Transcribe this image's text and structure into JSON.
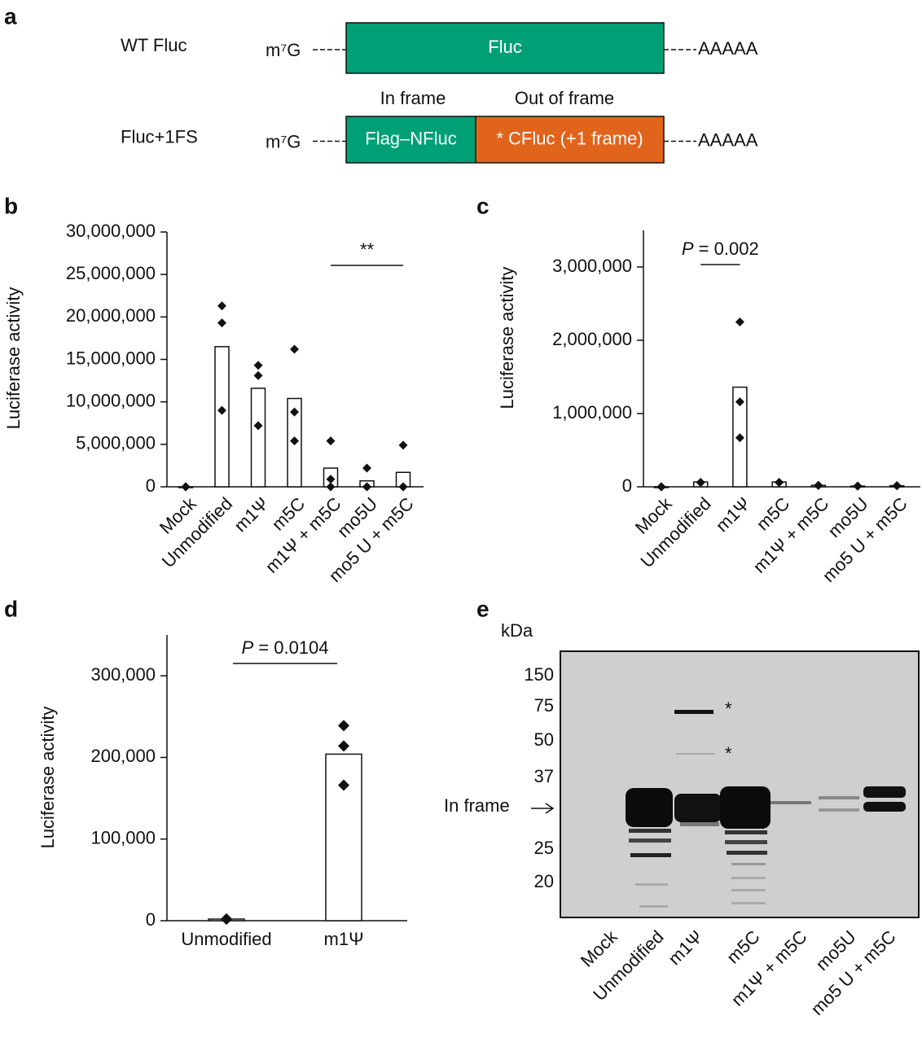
{
  "diagram": {
    "label": "a",
    "frame_labels": [
      "In frame",
      "Out of frame"
    ],
    "constructs": [
      {
        "name": "WT Fluc",
        "cap": "m⁷G",
        "segments": [
          {
            "text": "Fluc",
            "color": "#00a077"
          }
        ],
        "tail": "AAAAA"
      },
      {
        "name": "Fluc+1FS",
        "cap": "m⁷G",
        "segments": [
          {
            "text": "Flag–NFluc",
            "color": "#00a077"
          },
          {
            "text": "* CFluc (+1 frame)",
            "color": "#e0641c"
          }
        ],
        "tail": "AAAAA"
      }
    ]
  },
  "chart_data": [
    {
      "type": "bar",
      "label": "b",
      "ylabel": "Luciferase activity",
      "color": "#ffffff",
      "categories": [
        "Mock",
        "Unmodified",
        "m1Ψ",
        "m5C",
        "m1Ψ + m5C",
        "mo5U",
        "mo5 U + m5C"
      ],
      "values": [
        0,
        16500000,
        11600000,
        10400000,
        2200000,
        700000,
        1700000
      ],
      "points": [
        [
          0,
          0,
          0
        ],
        [
          21300000,
          19300000,
          9000000
        ],
        [
          14300000,
          13100000,
          7200000
        ],
        [
          16200000,
          8800000,
          5400000
        ],
        [
          5400000,
          900000,
          0
        ],
        [
          2200000,
          0,
          0
        ],
        [
          4900000,
          0,
          0
        ]
      ],
      "ylim": [
        0,
        30000000
      ],
      "yticks": [
        0,
        {
          "value": 5000000,
          "label": "5,000,000"
        },
        {
          "value": 10000000,
          "label": "10,000,000"
        },
        {
          "value": 15000000,
          "label": "15,000,000"
        },
        {
          "value": 20000000,
          "label": "20,000,000"
        },
        {
          "value": 25000000,
          "label": "25,000,000"
        },
        {
          "value": 30000000,
          "label": "30,000,000"
        }
      ],
      "annotation": {
        "text": "**",
        "between": [
          "m1Ψ + m5C",
          "mo5 U + m5C"
        ]
      }
    },
    {
      "type": "bar",
      "label": "c",
      "ylabel": "Luciferase activity",
      "color": "#ffffff",
      "categories": [
        "Mock",
        "Unmodified",
        "m1Ψ",
        "m5C",
        "m1Ψ + m5C",
        "mo5U",
        "mo5 U + m5C"
      ],
      "values": [
        0,
        66000,
        1360000,
        66000,
        20000,
        10000,
        15000
      ],
      "points": [
        [
          0,
          0,
          0
        ],
        [
          60000,
          60000,
          60000
        ],
        [
          2250000,
          1160000,
          670000
        ],
        [
          60000,
          60000,
          60000
        ],
        [
          20000,
          20000,
          20000
        ],
        [
          10000,
          10000,
          10000
        ],
        [
          15000,
          15000,
          15000
        ]
      ],
      "ylim": [
        0,
        3500000
      ],
      "yticks": [
        0,
        {
          "value": 1000000,
          "label": "1,000,000"
        },
        {
          "value": 2000000,
          "label": "2,000,000"
        },
        {
          "value": 3000000,
          "label": "3,000,000"
        }
      ],
      "annotation": {
        "text": "P = 0.002",
        "between": [
          "Unmodified",
          "m1Ψ"
        ]
      }
    },
    {
      "type": "bar",
      "label": "d",
      "ylabel": "Luciferase activity",
      "color": "#ffffff",
      "categories": [
        "Unmodified",
        "m1Ψ"
      ],
      "values": [
        2000,
        204000
      ],
      "points": [
        [
          2000,
          2000,
          2000
        ],
        [
          239000,
          214000,
          166000
        ]
      ],
      "ylim": [
        0,
        350000
      ],
      "yticks": [
        0,
        {
          "value": 100000,
          "label": "100,000"
        },
        {
          "value": 200000,
          "label": "200,000"
        },
        {
          "value": 300000,
          "label": "300,000"
        }
      ],
      "annotation": {
        "text": "P = 0.0104",
        "between": [
          "Unmodified",
          "m1Ψ"
        ]
      }
    }
  ],
  "gel": {
    "label": "e",
    "unit": "kDa",
    "markers": [
      150,
      75,
      50,
      37,
      25,
      20
    ],
    "arrow_label": "In frame",
    "asterisks": [
      "*",
      "*"
    ],
    "lanes": [
      "Mock",
      "Unmodified",
      "m1Ψ",
      "m5C",
      "m1Ψ + m5C",
      "mo5U",
      "mo5 U + m5C"
    ]
  }
}
